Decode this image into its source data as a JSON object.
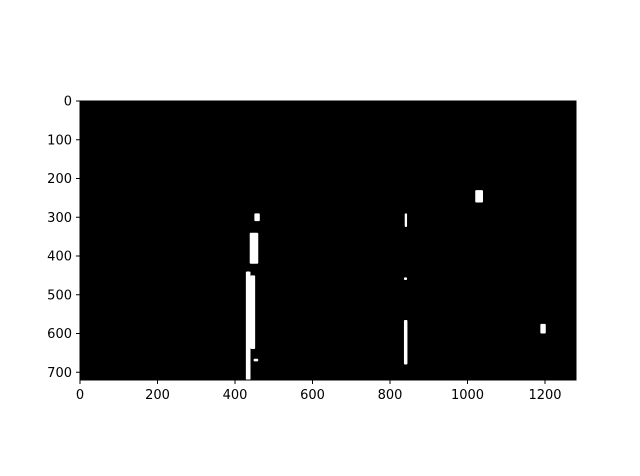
{
  "figure": {
    "background": "#ffffff",
    "image_background": "#000000",
    "mask_color": "#ffffff",
    "content": "binary lane-line mask (white blobs on black)"
  },
  "axes": {
    "x": {
      "min": 0,
      "max": 1280,
      "ticks": [
        0,
        200,
        400,
        600,
        800,
        1000,
        1200
      ],
      "tick_labels": [
        "0",
        "200",
        "400",
        "600",
        "800",
        "1000",
        "1200"
      ]
    },
    "y": {
      "min": 0,
      "max": 720,
      "inverted": true,
      "ticks": [
        0,
        100,
        200,
        300,
        400,
        500,
        600,
        700
      ],
      "tick_labels": [
        "0",
        "100",
        "200",
        "300",
        "400",
        "500",
        "600",
        "700"
      ]
    }
  },
  "mask_blobs": [
    {
      "x": [
        428,
        440
      ],
      "y": [
        440,
        720
      ]
    },
    {
      "x": [
        440,
        452
      ],
      "y": [
        450,
        640
      ]
    },
    {
      "x": [
        438,
        460
      ],
      "y": [
        340,
        420
      ]
    },
    {
      "x": [
        450,
        464
      ],
      "y": [
        290,
        310
      ]
    },
    {
      "x": [
        448,
        460
      ],
      "y": [
        665,
        672
      ]
    },
    {
      "x": [
        836,
        845
      ],
      "y": [
        565,
        680
      ]
    },
    {
      "x": [
        838,
        844
      ],
      "y": [
        290,
        325
      ]
    },
    {
      "x": [
        836,
        844
      ],
      "y": [
        455,
        462
      ]
    },
    {
      "x": [
        1020,
        1040
      ],
      "y": [
        230,
        262
      ]
    },
    {
      "x": [
        1188,
        1202
      ],
      "y": [
        575,
        600
      ]
    }
  ]
}
